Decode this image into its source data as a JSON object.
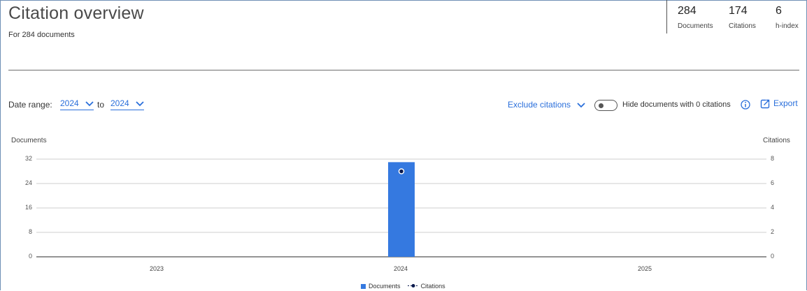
{
  "header": {
    "title": "Citation overview",
    "subtitle": "For 284 documents"
  },
  "stats": [
    {
      "value": "284",
      "label": "Documents"
    },
    {
      "value": "174",
      "label": "Citations"
    },
    {
      "value": "6",
      "label": "h-index"
    }
  ],
  "controls": {
    "date_range_label": "Date range:",
    "from_year": "2024",
    "to_label": "to",
    "to_year": "2024",
    "exclude_citations": "Exclude citations",
    "hide_zero_label": "Hide documents with 0 citations",
    "hide_zero_enabled": false,
    "export_label": "Export"
  },
  "colors": {
    "accent": "#2a6fdb",
    "bar": "#3579e0",
    "citation_point": "#0b1a4d"
  },
  "icons": [
    "chevron-down-icon",
    "info-icon",
    "export-icon"
  ],
  "chart_data": {
    "type": "bar",
    "categories": [
      "2023",
      "2024",
      "2025"
    ],
    "series": [
      {
        "name": "Documents",
        "axis": "left",
        "type": "bar",
        "values": [
          0,
          31,
          0
        ]
      },
      {
        "name": "Citations",
        "axis": "right",
        "type": "line",
        "values": [
          null,
          7,
          null
        ]
      }
    ],
    "ylabel_left": "Documents",
    "ylabel_right": "Citations",
    "y_ticks_left": [
      "32",
      "24",
      "16",
      "8",
      "0"
    ],
    "y_ticks_right": [
      "8",
      "6",
      "4",
      "2",
      "0"
    ],
    "ylim_left": [
      0,
      32
    ],
    "ylim_right": [
      0,
      8
    ],
    "grid": true,
    "legend": "bottom-center"
  }
}
